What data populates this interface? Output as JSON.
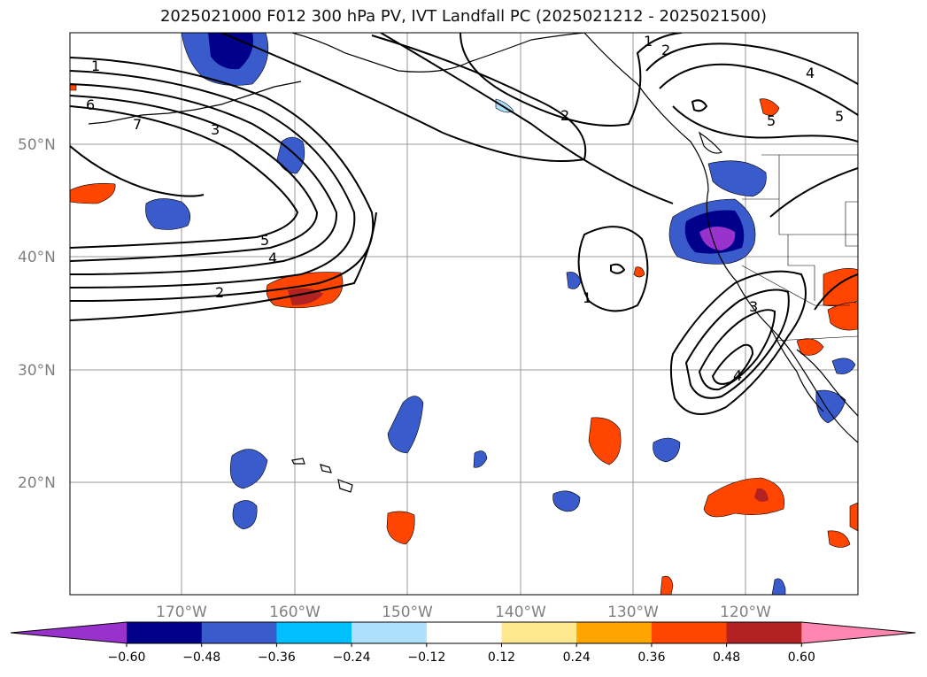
{
  "title": "2025021000 F012 300 hPa PV, IVT Landfall PC (2025021212 - 2025021500)",
  "latitude_labels": [
    "50°N",
    "40°N",
    "30°N",
    "20°N"
  ],
  "longitude_labels": [
    "170°W",
    "160°W",
    "150°W",
    "140°W",
    "130°W",
    "120°W"
  ],
  "pv_contour_labels": [
    "1",
    "6",
    "7",
    "3",
    "5",
    "4",
    "2",
    "2",
    "1",
    "2",
    "4",
    "5",
    "5",
    "1",
    "3",
    "4"
  ],
  "colorbar": {
    "ticks": [
      "−0.60",
      "−0.48",
      "−0.36",
      "−0.24",
      "−0.12",
      "0.12",
      "0.24",
      "0.36",
      "0.48",
      "0.60"
    ],
    "colors": [
      "#9932CC",
      "#00008B",
      "#3A5BCC",
      "#00BFFF",
      "#ADE0FA",
      "#FFFFFF",
      "#FFE98F",
      "#FFA500",
      "#FF4500",
      "#B22222",
      "#FF86B0"
    ]
  },
  "colors": {
    "grid": "#999999",
    "contour": "#000000",
    "coast": "#000000"
  }
}
